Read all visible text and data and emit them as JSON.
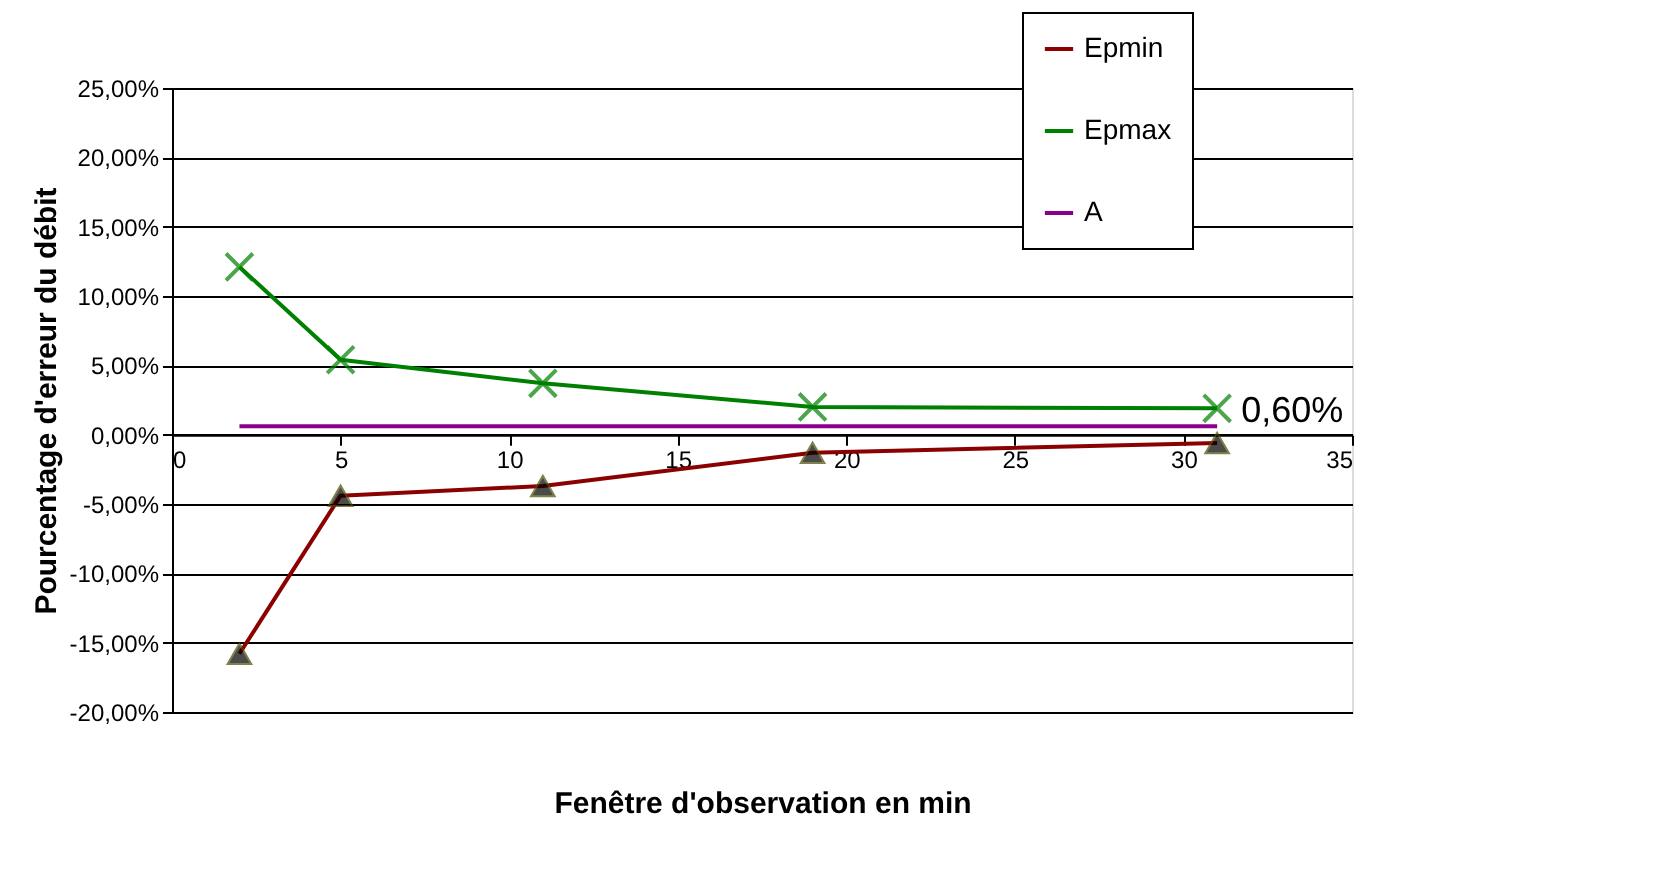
{
  "chart_data": {
    "type": "line",
    "xlabel": "Fenêtre d'observation en  min",
    "ylabel": "Pourcentage d'erreur du débit",
    "series": [
      {
        "name": "Epmin",
        "color": "#8b0000",
        "marker": "triangle",
        "x": [
          2,
          5,
          11,
          19,
          31
        ],
        "values": [
          -15.8,
          -4.4,
          -3.7,
          -1.3,
          -0.6
        ]
      },
      {
        "name": "Epmax",
        "color": "#008000",
        "marker": "cross",
        "x": [
          2,
          5,
          11,
          19,
          31
        ],
        "values": [
          12.1,
          5.4,
          3.7,
          2.0,
          1.9
        ]
      },
      {
        "name": "A",
        "color": "#8b008b",
        "marker": "none",
        "x": [
          2,
          31
        ],
        "values": [
          0.6,
          0.6
        ]
      }
    ],
    "annotations": [
      {
        "text": "0,60%",
        "x": 31,
        "y": 0.6
      }
    ],
    "xlim": [
      0,
      35
    ],
    "xticks": [
      0,
      5,
      10,
      15,
      20,
      25,
      30,
      35
    ],
    "ylim": [
      -20,
      25
    ],
    "yticks": [
      {
        "value": -20,
        "label": "-20,00%"
      },
      {
        "value": -15,
        "label": "-15,00%"
      },
      {
        "value": -10,
        "label": "-10,00%"
      },
      {
        "value": -5,
        "label": "-5,00%"
      },
      {
        "value": 0,
        "label": "0,00%"
      },
      {
        "value": 5,
        "label": "5,00%"
      },
      {
        "value": 10,
        "label": "10,00%"
      },
      {
        "value": 15,
        "label": "15,00%"
      },
      {
        "value": 20,
        "label": "20,00%"
      },
      {
        "value": 25,
        "label": "25,00%"
      }
    ],
    "grid": "y",
    "legend": "top right",
    "line_style": "solid"
  }
}
